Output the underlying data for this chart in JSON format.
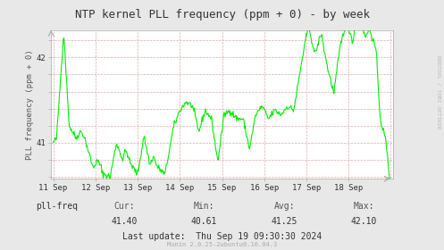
{
  "title": "NTP kernel PLL frequency (ppm + 0) - by week",
  "ylabel": "PLL frequency (ppm + 0)",
  "watermark": "RRDTOOL / TOBI OETIKER",
  "munin_text": "Munin 2.0.25-2ubuntu0.16.04.3",
  "legend_label": "pll-freq",
  "legend_color": "#00cc00",
  "cur": "41.40",
  "min_val": "40.61",
  "avg": "41.25",
  "max_val": "42.10",
  "last_update": "Thu Sep 19 09:30:30 2024",
  "bg_color": "#e8e8e8",
  "plot_bg_color": "#ffffff",
  "line_color": "#00ee00",
  "ylim_low": 40.58,
  "ylim_high": 42.32,
  "ytick_major": [
    41.0,
    42.0
  ],
  "ytick_minor_step": 0.2,
  "xtick_labels": [
    "11 Sep",
    "12 Sep",
    "13 Sep",
    "14 Sep",
    "15 Sep",
    "16 Sep",
    "17 Sep",
    "18 Sep"
  ],
  "font_size_title": 9,
  "font_size_axis": 7,
  "font_size_stats": 7,
  "font_size_munin": 5,
  "watermark_color": "#bbbbbb"
}
